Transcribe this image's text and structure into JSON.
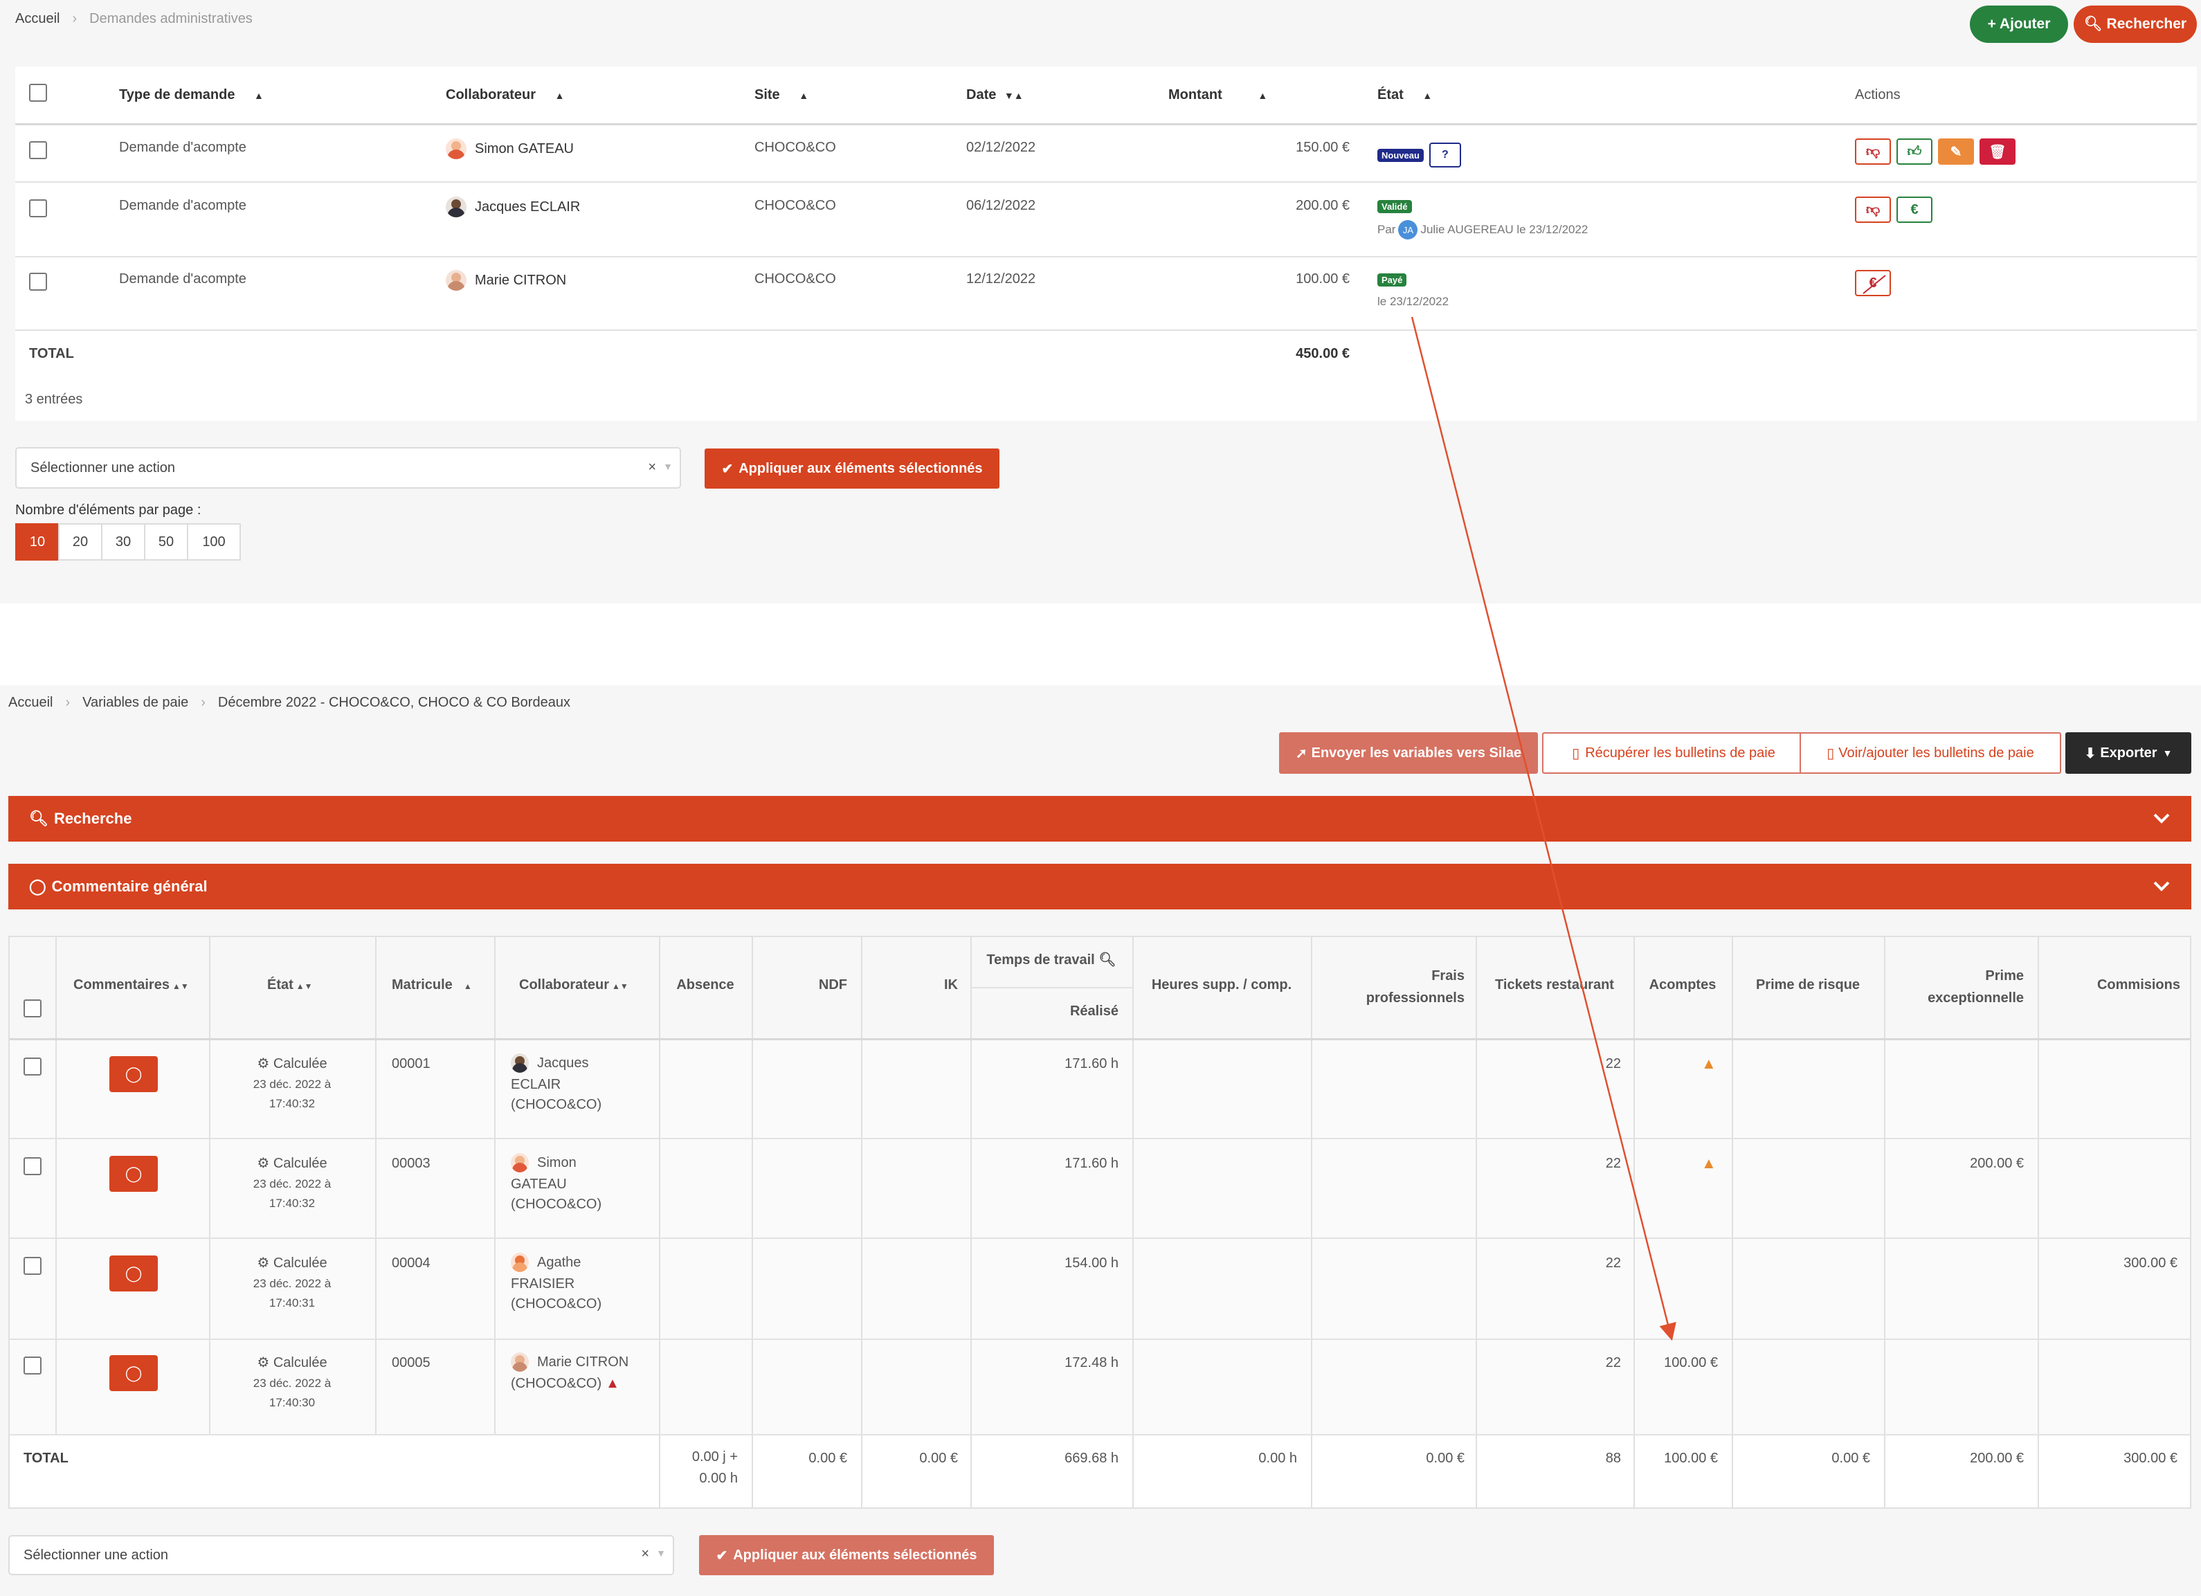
{
  "top": {
    "breadcrumb": [
      "Accueil",
      "Demandes administratives"
    ],
    "add_button": "+ Ajouter",
    "search_button": "Rechercher",
    "columns": [
      "Type de demande",
      "Collaborateur",
      "Site",
      "Date",
      "Montant",
      "État",
      "Actions"
    ],
    "rows": [
      {
        "type": "Demande d'acompte",
        "collab": "Simon GATEAU",
        "site": "CHOCO&CO",
        "date": "02/12/2022",
        "amount": "150.00 €",
        "status": "Nouveau",
        "status_extra": "?",
        "note": ""
      },
      {
        "type": "Demande d'acompte",
        "collab": "Jacques ECLAIR",
        "site": "CHOCO&CO",
        "date": "06/12/2022",
        "amount": "200.00 €",
        "status": "Validé",
        "status_extra": "",
        "note_prefix": "Par",
        "note_initials": "JA",
        "note": "Julie AUGEREAU le 23/12/2022"
      },
      {
        "type": "Demande d'acompte",
        "collab": "Marie CITRON",
        "site": "CHOCO&CO",
        "date": "12/12/2022",
        "amount": "100.00 €",
        "status": "Payé",
        "status_extra": "",
        "note": "le 23/12/2022"
      }
    ],
    "total_label": "TOTAL",
    "total_amount": "450.00 €",
    "entries": "3 entrées",
    "action_placeholder": "Sélectionner une action",
    "apply_button": "Appliquer aux éléments sélectionnés",
    "per_page_label": "Nombre d'éléments par page :",
    "per_page": [
      "10",
      "20",
      "30",
      "50",
      "100"
    ]
  },
  "bottom": {
    "breadcrumb": [
      "Accueil",
      "Variables de paie",
      "Décembre 2022 - CHOCO&CO, CHOCO & CO Bordeaux"
    ],
    "send_button": "Envoyer les variables vers Silae",
    "retrieve_button": "Récupérer les bulletins de paie",
    "view_button": "Voir/ajouter les bulletins de paie",
    "export_button": "Exporter",
    "search_bar": "Recherche",
    "comment_bar": "Commentaire général",
    "columns": {
      "comments": "Commentaires",
      "state": "État",
      "matricule": "Matricule",
      "collab": "Collaborateur",
      "absence": "Absence",
      "ndf": "NDF",
      "ik": "IK",
      "work_time": "Temps de travail",
      "realized": "Réalisé",
      "overtime": "Heures supp. / comp.",
      "frais": [
        "Frais",
        "professionnels"
      ],
      "tickets": "Tickets restaurant",
      "acomptes": "Acomptes",
      "prime_risque": "Prime de risque",
      "prime_exc": [
        "Prime",
        "exceptionnelle"
      ],
      "commissions": "Commisions"
    },
    "rows": [
      {
        "state": "Calculée",
        "date1": "23 déc. 2022 à",
        "date2": "17:40:32",
        "matricule": "00001",
        "name1": "Jacques",
        "name2": "ECLAIR",
        "company": "(CHOCO&CO)",
        "realized": "171.60 h",
        "tickets": "22",
        "acomptes": "",
        "acompte_warning": true,
        "prime_exc": "",
        "commissions": ""
      },
      {
        "state": "Calculée",
        "date1": "23 déc. 2022 à",
        "date2": "17:40:32",
        "matricule": "00003",
        "name1": "Simon",
        "name2": "GATEAU",
        "company": "(CHOCO&CO)",
        "realized": "171.60 h",
        "tickets": "22",
        "acomptes": "",
        "acompte_warning": true,
        "prime_exc": "200.00 €",
        "commissions": ""
      },
      {
        "state": "Calculée",
        "date1": "23 déc. 2022 à",
        "date2": "17:40:31",
        "matricule": "00004",
        "name1": "Agathe",
        "name2": "FRAISIER",
        "company": "(CHOCO&CO)",
        "realized": "154.00 h",
        "tickets": "22",
        "acomptes": "",
        "acompte_warning": false,
        "prime_exc": "",
        "commissions": "300.00 €"
      },
      {
        "state": "Calculée",
        "date1": "23 déc. 2022 à",
        "date2": "17:40:30",
        "matricule": "00005",
        "name1": "Marie CITRON",
        "name2": "",
        "company": "(CHOCO&CO)",
        "realized": "172.48 h",
        "tickets": "22",
        "acomptes": "100.00 €",
        "acompte_warning": false,
        "prime_exc": "",
        "commissions": ""
      }
    ],
    "totals": {
      "label": "TOTAL",
      "absence1": "0.00 j +",
      "absence2": "0.00 h",
      "ndf": "0.00 €",
      "ik": "0.00 €",
      "realized": "669.68 h",
      "overtime": "0.00 h",
      "frais": "0.00 €",
      "tickets": "88",
      "acomptes": "100.00 €",
      "prime_risque": "0.00 €",
      "prime_exc": "200.00 €",
      "commissions": "300.00 €"
    },
    "action_placeholder": "Sélectionner une action",
    "apply_button": "Appliquer aux éléments sélectionnés"
  },
  "colors": {
    "accent": "#d64320",
    "green": "#27823e",
    "navy": "#1f2a8a",
    "arrow": "#e0502e"
  }
}
